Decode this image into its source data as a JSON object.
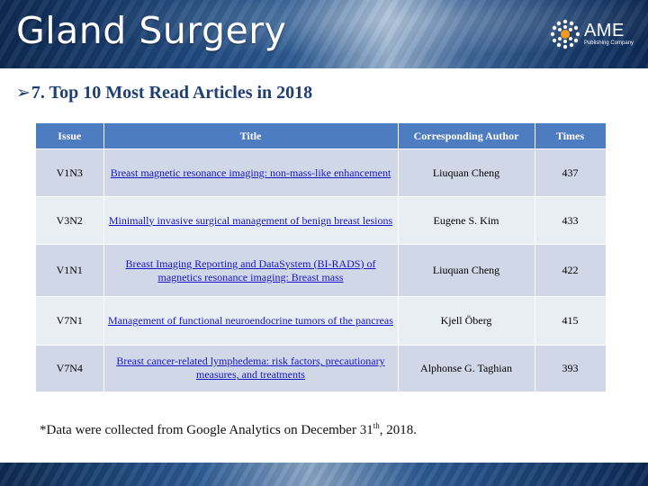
{
  "banner": {
    "title": "Gland Surgery",
    "logo_main": "AME",
    "logo_sub": "Publishing Company"
  },
  "heading": {
    "arrow": "➢",
    "text": "7. Top 10 Most Read Articles in 2018"
  },
  "table": {
    "headers": {
      "issue": "Issue",
      "title": "Title",
      "author": "Corresponding Author",
      "times": "Times"
    },
    "rows": [
      {
        "issue": "V1N3",
        "title": "Breast magnetic resonance imaging: non-mass-like enhancement",
        "author": "Liuquan Cheng",
        "times": "437"
      },
      {
        "issue": "V3N2",
        "title": "Minimally invasive surgical management of benign breast lesions",
        "author": "Eugene S. Kim",
        "times": "433"
      },
      {
        "issue": "V1N1",
        "title": "Breast Imaging Reporting and DataSystem (BI-RADS) of magnetics resonance imaging: Breast mass",
        "author": "Liuquan Cheng",
        "times": "422"
      },
      {
        "issue": "V7N1",
        "title": "Management of functional neuroendocrine tumors of the pancreas",
        "author": "Kjell Öberg",
        "times": "415"
      },
      {
        "issue": "V7N4",
        "title": "Breast cancer-related lymphedema: risk factors, precautionary measures, and treatments",
        "author": "Alphonse G. Taghian",
        "times": "393"
      }
    ]
  },
  "note": {
    "prefix": "*Data were collected from Google Analytics on December 31",
    "sup": "th",
    "suffix": ", 2018."
  }
}
